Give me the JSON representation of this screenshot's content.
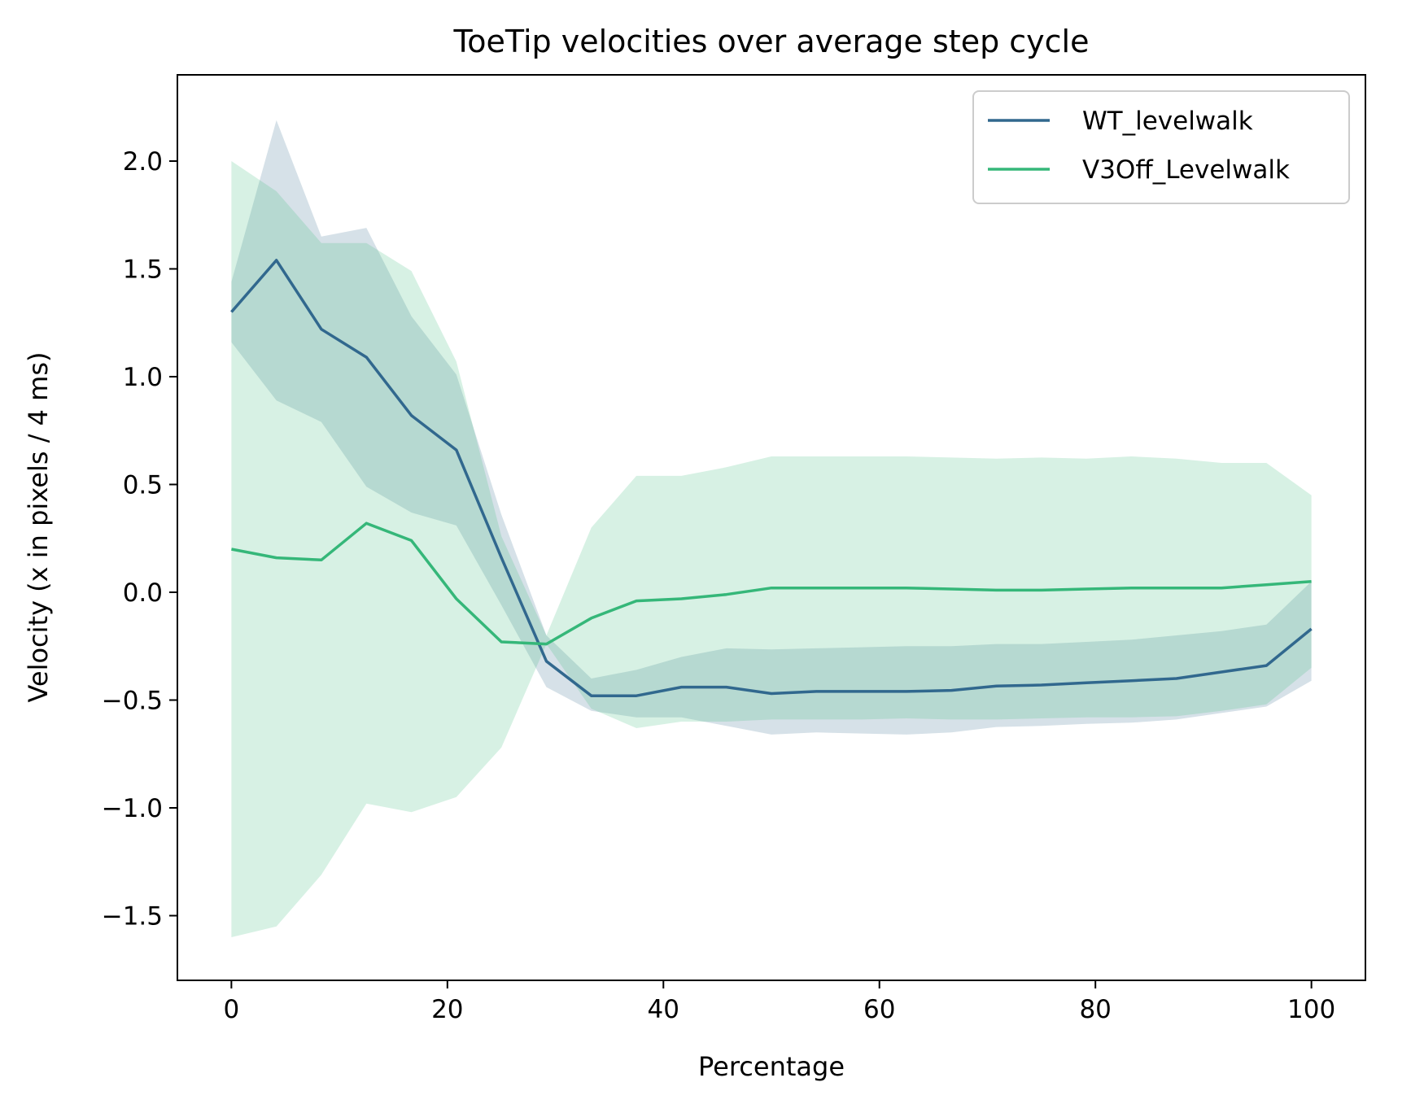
{
  "chart_data": {
    "type": "line",
    "title": "ToeTip velocities over average step cycle",
    "xlabel": "Percentage",
    "ylabel": "Velocity (x in pixels / 4 ms)",
    "xlim": [
      -5,
      105
    ],
    "ylim": [
      -1.8,
      2.4
    ],
    "xticks": [
      0,
      20,
      40,
      60,
      80,
      100
    ],
    "xtick_labels": [
      "0",
      "20",
      "40",
      "60",
      "80",
      "100"
    ],
    "yticks": [
      -1.5,
      -1.0,
      -0.5,
      0.0,
      0.5,
      1.0,
      1.5,
      2.0
    ],
    "ytick_labels": [
      "−1.5",
      "−1.0",
      "−0.5",
      "0.0",
      "0.5",
      "1.0",
      "1.5",
      "2.0"
    ],
    "grid": false,
    "legend_position": "top-right",
    "x": [
      0,
      4.17,
      8.33,
      12.5,
      16.67,
      20.83,
      25,
      29.17,
      33.33,
      37.5,
      41.67,
      45.83,
      50,
      54.17,
      58.33,
      62.5,
      66.67,
      70.83,
      75,
      79.17,
      83.33,
      87.5,
      91.67,
      95.83,
      100
    ],
    "series": [
      {
        "name": "WT_levelwalk",
        "color": "#31688e",
        "band_color": "#d6dfe7",
        "values": [
          1.3,
          1.54,
          1.22,
          1.09,
          0.82,
          0.66,
          0.16,
          -0.32,
          -0.48,
          -0.48,
          -0.44,
          -0.44,
          -0.47,
          -0.46,
          -0.46,
          -0.46,
          -0.455,
          -0.435,
          -0.43,
          -0.42,
          -0.41,
          -0.4,
          -0.37,
          -0.34,
          -0.17
        ],
        "upper": [
          1.44,
          2.19,
          1.65,
          1.69,
          1.28,
          1.01,
          0.36,
          -0.2,
          -0.4,
          -0.36,
          -0.3,
          -0.26,
          -0.265,
          -0.26,
          -0.255,
          -0.25,
          -0.25,
          -0.24,
          -0.24,
          -0.23,
          -0.22,
          -0.2,
          -0.18,
          -0.15,
          0.05
        ],
        "lower": [
          1.16,
          0.89,
          0.79,
          0.49,
          0.37,
          0.31,
          -0.06,
          -0.44,
          -0.55,
          -0.58,
          -0.58,
          -0.62,
          -0.66,
          -0.65,
          -0.655,
          -0.66,
          -0.65,
          -0.625,
          -0.62,
          -0.61,
          -0.605,
          -0.59,
          -0.56,
          -0.53,
          -0.41
        ]
      },
      {
        "name": "V3Off_Levelwalk",
        "color": "#35b779",
        "band_color": "#d7f0e3",
        "values": [
          0.2,
          0.16,
          0.15,
          0.32,
          0.24,
          -0.03,
          -0.23,
          -0.24,
          -0.12,
          -0.04,
          -0.03,
          -0.01,
          0.02,
          0.02,
          0.02,
          0.02,
          0.015,
          0.01,
          0.01,
          0.015,
          0.02,
          0.02,
          0.02,
          0.035,
          0.05
        ],
        "upper": [
          2.0,
          1.86,
          1.62,
          1.62,
          1.49,
          1.07,
          0.26,
          -0.2,
          0.3,
          0.54,
          0.54,
          0.58,
          0.63,
          0.63,
          0.63,
          0.63,
          0.625,
          0.62,
          0.625,
          0.62,
          0.63,
          0.62,
          0.6,
          0.6,
          0.45
        ],
        "lower": [
          -1.6,
          -1.55,
          -1.31,
          -0.98,
          -1.02,
          -0.95,
          -0.72,
          -0.24,
          -0.54,
          -0.63,
          -0.6,
          -0.6,
          -0.59,
          -0.59,
          -0.59,
          -0.585,
          -0.59,
          -0.59,
          -0.585,
          -0.58,
          -0.58,
          -0.575,
          -0.55,
          -0.52,
          -0.35
        ]
      }
    ]
  }
}
